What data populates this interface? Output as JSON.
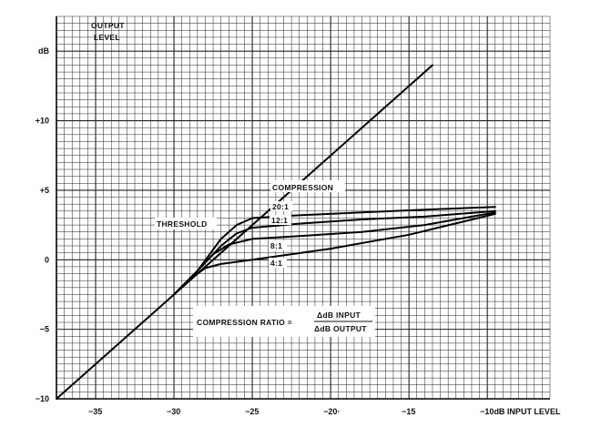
{
  "chart_data": {
    "type": "line",
    "title": "",
    "xlabel": "INPUT LEVEL",
    "ylabel": "dB",
    "ylabel_secondary": "OUTPUT LEVEL",
    "output_label_lines": [
      "OUTPUT",
      "LEVEL"
    ],
    "xlim": [
      -37.5,
      -6
    ],
    "ylim": [
      -10,
      17.5
    ],
    "grid": true,
    "x_ticks": [
      {
        "value": -35,
        "label": "−35"
      },
      {
        "value": -30,
        "label": "−30"
      },
      {
        "value": -25,
        "label": "−25"
      },
      {
        "value": -20,
        "label": "−20·"
      },
      {
        "value": -15,
        "label": "−15"
      },
      {
        "value": -10,
        "label": "−10dB INPUT LEVEL"
      }
    ],
    "y_ticks": [
      {
        "value": 15,
        "label": "dB"
      },
      {
        "value": 10,
        "label": "+10"
      },
      {
        "value": 5,
        "label": "+5"
      },
      {
        "value": 0,
        "label": "0"
      },
      {
        "value": -5,
        "label": "−5"
      },
      {
        "value": -10,
        "label": "−10"
      }
    ],
    "series": [
      {
        "name": "",
        "points": [
          [
            -37.5,
            -10
          ],
          [
            -13.5,
            14
          ]
        ]
      },
      {
        "name": "20:1",
        "points": [
          [
            -30,
            -2.5
          ],
          [
            -28.5,
            -0.8
          ],
          [
            -27,
            1.5
          ],
          [
            -26,
            2.5
          ],
          [
            -25,
            3.0
          ],
          [
            -22,
            3.2
          ],
          [
            -18,
            3.4
          ],
          [
            -14,
            3.6
          ],
          [
            -9.5,
            3.8
          ]
        ]
      },
      {
        "name": "12:1",
        "points": [
          [
            -30,
            -2.5
          ],
          [
            -28.5,
            -0.8
          ],
          [
            -27,
            1.0
          ],
          [
            -26,
            1.9
          ],
          [
            -25,
            2.3
          ],
          [
            -22,
            2.6
          ],
          [
            -18,
            2.9
          ],
          [
            -14,
            3.1
          ],
          [
            -9.5,
            3.5
          ]
        ]
      },
      {
        "name": "8:1",
        "points": [
          [
            -30,
            -2.5
          ],
          [
            -28.5,
            -0.8
          ],
          [
            -27.5,
            0.4
          ],
          [
            -26.5,
            1.1
          ],
          [
            -25,
            1.5
          ],
          [
            -22,
            1.7
          ],
          [
            -18,
            2.0
          ],
          [
            -14,
            2.5
          ],
          [
            -9.5,
            3.4
          ]
        ]
      },
      {
        "name": "4:1",
        "points": [
          [
            -30,
            -2.5
          ],
          [
            -29,
            -1.4
          ],
          [
            -28,
            -0.6
          ],
          [
            -27,
            -0.3
          ],
          [
            -25,
            0.0
          ],
          [
            -20,
            0.8
          ],
          [
            -15,
            1.8
          ],
          [
            -9.5,
            3.3
          ]
        ]
      }
    ],
    "annotations": {
      "compression": "COMPRESSION",
      "threshold": "THRESHOLD",
      "ratio_lhs": "COMPRESSION  RATIO =",
      "ratio_numerator": "ΔdB  INPUT",
      "ratio_denominator": "ΔdB  OUTPUT"
    }
  }
}
